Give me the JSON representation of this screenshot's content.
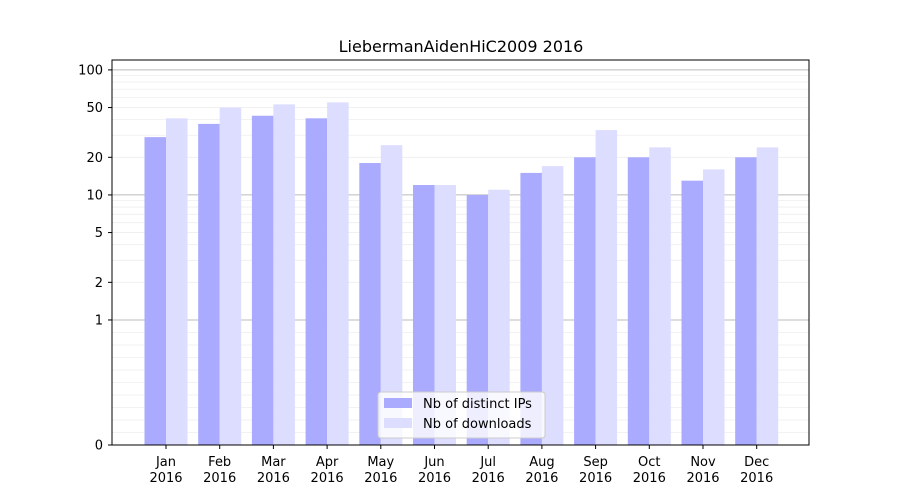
{
  "chart_data": {
    "type": "bar",
    "title": "LiebermanAidenHiC2009 2016",
    "xlabel": "",
    "ylabel": "",
    "scale": "symlog",
    "ylim": [
      0,
      120
    ],
    "yticks": [
      {
        "value": 0,
        "label": "0"
      },
      {
        "value": 1,
        "label": "1"
      },
      {
        "value": 2,
        "label": "2"
      },
      {
        "value": 5,
        "label": "5"
      },
      {
        "value": 10,
        "label": "10"
      },
      {
        "value": 20,
        "label": "20"
      },
      {
        "value": 50,
        "label": "50"
      },
      {
        "value": 100,
        "label": "100"
      }
    ],
    "categories": [
      [
        "Jan",
        "2016"
      ],
      [
        "Feb",
        "2016"
      ],
      [
        "Mar",
        "2016"
      ],
      [
        "Apr",
        "2016"
      ],
      [
        "May",
        "2016"
      ],
      [
        "Jun",
        "2016"
      ],
      [
        "Jul",
        "2016"
      ],
      [
        "Aug",
        "2016"
      ],
      [
        "Sep",
        "2016"
      ],
      [
        "Oct",
        "2016"
      ],
      [
        "Nov",
        "2016"
      ],
      [
        "Dec",
        "2016"
      ]
    ],
    "series": [
      {
        "name": "Nb of distinct IPs",
        "color": "#aaaaff",
        "values": [
          29,
          37,
          43,
          41,
          18,
          12,
          10,
          15,
          20,
          20,
          13,
          20
        ]
      },
      {
        "name": "Nb of downloads",
        "color": "#ddddff",
        "values": [
          41,
          50,
          53,
          55,
          25,
          12,
          11,
          17,
          33,
          24,
          16,
          24
        ]
      }
    ],
    "legend": "lower-center",
    "grid": true
  }
}
